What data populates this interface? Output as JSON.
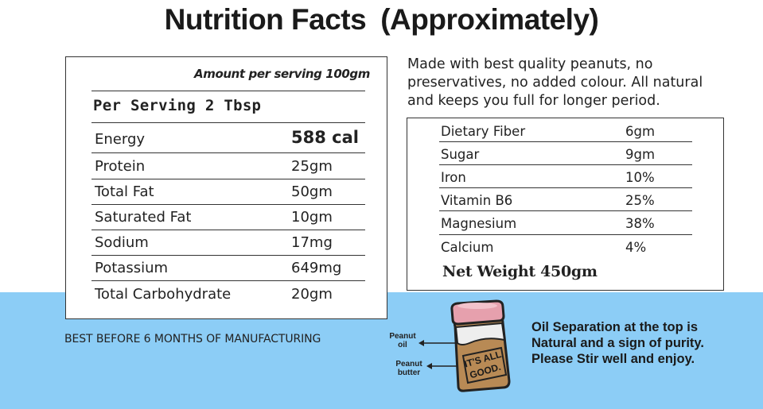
{
  "title": {
    "part1": "Nutrition Facts",
    "part2": "(Approximately)"
  },
  "left_panel": {
    "amount_header": "Amount per serving 100gm",
    "per_serving": "Per Serving 2 Tbsp",
    "rows": [
      {
        "label": "Energy",
        "value": "588 cal"
      },
      {
        "label": "Protein",
        "value": "25gm"
      },
      {
        "label": "Total Fat",
        "value": "50gm"
      },
      {
        "label": "Saturated Fat",
        "value": "10gm"
      },
      {
        "label": "Sodium",
        "value": "17mg"
      },
      {
        "label": "Potassium",
        "value": "649mg"
      },
      {
        "label": "Total Carbohydrate",
        "value": "20gm"
      }
    ]
  },
  "description": {
    "line1": "Made with best quality peanuts, no",
    "line2": "preservatives, no added colour. All natural",
    "line3": "and keeps you full for longer period."
  },
  "right_panel": {
    "rows": [
      {
        "label": "Dietary Fiber",
        "value": "6gm"
      },
      {
        "label": "Sugar",
        "value": "9gm"
      },
      {
        "label": "Iron",
        "value": "10%"
      },
      {
        "label": "Vitamin B6",
        "value": "25%"
      },
      {
        "label": "Magnesium",
        "value": "38%"
      },
      {
        "label": "Calcium",
        "value": "4%"
      }
    ],
    "net_weight": "Net Weight 450gm"
  },
  "best_before": "BEST BEFORE 6 MONTHS OF MANUFACTURING",
  "jar": {
    "label_oil_1": "Peanut",
    "label_oil_2": "oil",
    "label_butter_1": "Peanut",
    "label_butter_2": "butter",
    "jar_text_1": "IT'S ALL",
    "jar_text_2": "GOOD."
  },
  "oil_note": {
    "line1": "Oil Separation at the top is",
    "line2": "Natural and a sign of purity.",
    "line3": "Please Stir well and enjoy."
  },
  "colors": {
    "band": "#8ccdf6",
    "jar_body": "#b88a55",
    "jar_lid": "#e6a0ad",
    "jar_oil": "#eeeeee"
  }
}
